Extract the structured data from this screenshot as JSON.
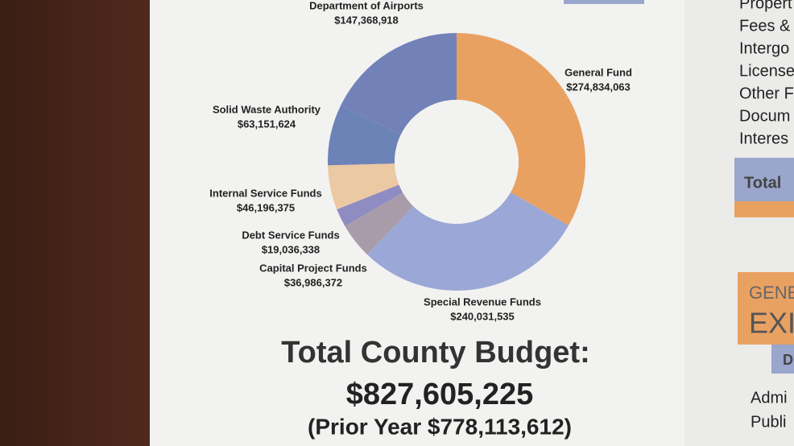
{
  "chart_data": {
    "type": "donut",
    "categories": [
      "General Fund",
      "Special Revenue Funds",
      "Capital Project Funds",
      "Debt Service Funds",
      "Internal Service Funds",
      "Solid Waste Authority",
      "Department of Airports"
    ],
    "values": [
      274834063,
      240031535,
      36986372,
      19036338,
      46196375,
      63151624,
      147368918
    ],
    "value_labels": [
      "$274,834,063",
      "$240,031,535",
      "$36,986,372",
      "$19,036,338",
      "$46,196,375",
      "$63,151,624",
      "$147,368,918"
    ],
    "colors": [
      "#e9a162",
      "#9ba7d6",
      "#a89caa",
      "#8e8cc0",
      "#ebc9a2",
      "#6c83b8",
      "#7282b9"
    ],
    "title": "Total County Budget:",
    "total": "$827,605,225",
    "prior_year": "(Prior Year $778,113,612)"
  },
  "sidebar": {
    "items": [
      "Propert",
      "Fees &",
      "Intergo",
      "License",
      "Other F",
      "Docum",
      "Interes"
    ],
    "total": "Total",
    "heading1": "GENE",
    "heading2": "EXI",
    "tab": "D",
    "items2": [
      "Admi",
      "Publi"
    ]
  }
}
